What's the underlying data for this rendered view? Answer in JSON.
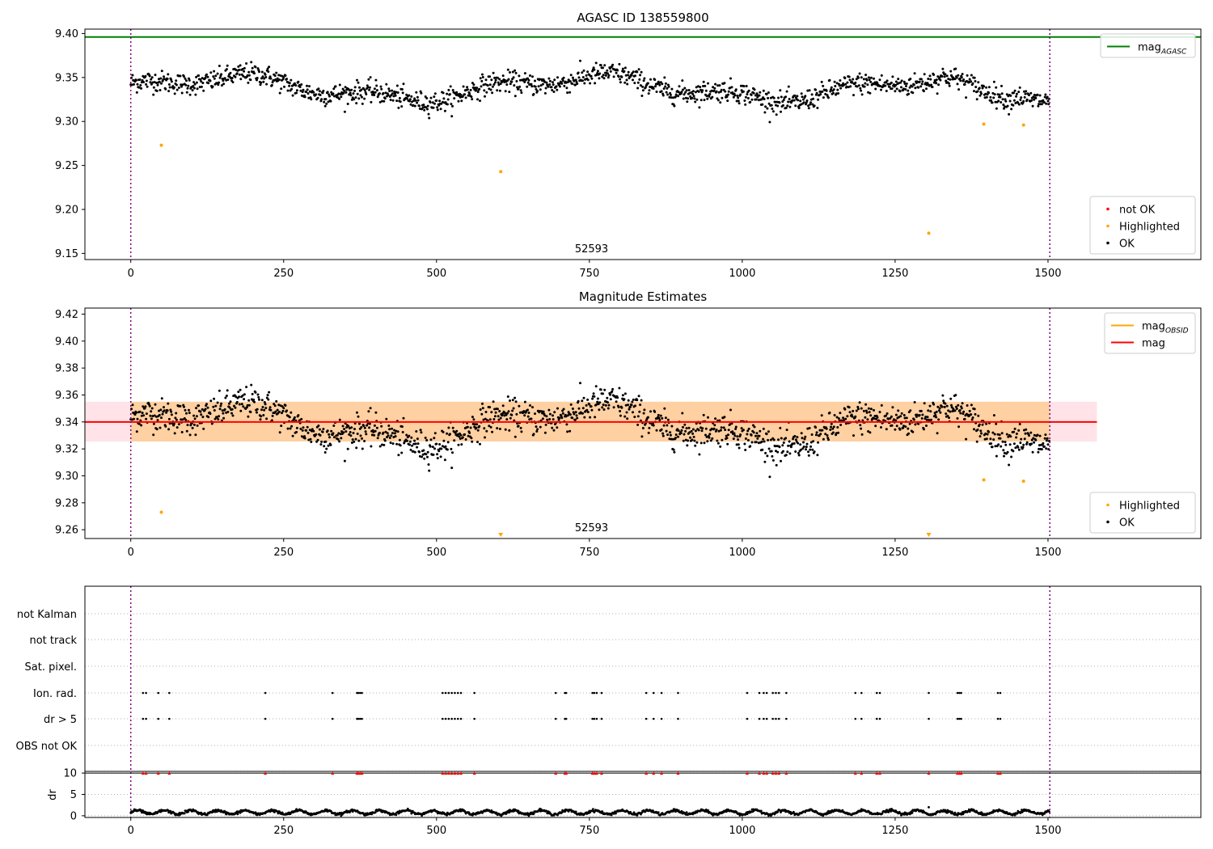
{
  "chart_data": [
    {
      "type": "scatter",
      "title": "AGASC ID 138559800",
      "xlim": [
        -75,
        1750
      ],
      "ylim": [
        9.143,
        9.405
      ],
      "xticks": [
        0,
        250,
        500,
        750,
        1000,
        1250,
        1500
      ],
      "yticks": [
        9.15,
        9.2,
        9.25,
        9.3,
        9.35,
        9.4
      ],
      "ytick_decimals": 2,
      "center_label": "52593",
      "vlines": [
        0,
        1503
      ],
      "legends": [
        {
          "position": "upper-right",
          "entries": [
            {
              "kind": "line",
              "color": "#008000",
              "label": "mag",
              "sub": "AGASC"
            }
          ]
        },
        {
          "position": "lower-right",
          "entries": [
            {
              "kind": "marker",
              "color": "#ff0000",
              "label": "not OK"
            },
            {
              "kind": "marker",
              "color": "#ffa500",
              "label": "Highlighted"
            },
            {
              "kind": "marker",
              "color": "#000000",
              "label": "OK"
            }
          ]
        }
      ],
      "hlines": [
        {
          "y": 9.396,
          "x0": -75,
          "x1": 1750,
          "color": "#008000",
          "width": 2
        }
      ],
      "ok_series": {
        "name": "OK",
        "color": "#000000",
        "n": 1503,
        "x_range": [
          0,
          1503
        ],
        "y_mean": 9.338,
        "y_scatter": 0.008
      },
      "highlighted": [
        {
          "x": 50,
          "y": 9.273
        },
        {
          "x": 605,
          "y": 9.243
        },
        {
          "x": 1305,
          "y": 9.173
        },
        {
          "x": 1395,
          "y": 9.297
        },
        {
          "x": 1460,
          "y": 9.296
        }
      ]
    },
    {
      "type": "scatter",
      "title": "Magnitude Estimates",
      "xlim": [
        -75,
        1750
      ],
      "ylim": [
        9.2535,
        9.4245
      ],
      "xticks": [
        0,
        250,
        500,
        750,
        1000,
        1250,
        1500
      ],
      "yticks": [
        9.26,
        9.28,
        9.3,
        9.32,
        9.34,
        9.36,
        9.38,
        9.4,
        9.42
      ],
      "ytick_decimals": 2,
      "center_label": "52593",
      "vlines": [
        0,
        1503
      ],
      "legends": [
        {
          "position": "upper-right",
          "entries": [
            {
              "kind": "line",
              "color": "#ffa500",
              "label": "mag",
              "sub": "OBSID"
            },
            {
              "kind": "line",
              "color": "#ff0000",
              "label": "mag"
            }
          ]
        },
        {
          "position": "lower-right",
          "entries": [
            {
              "kind": "marker",
              "color": "#ffa500",
              "label": "Highlighted"
            },
            {
              "kind": "marker",
              "color": "#000000",
              "label": "OK"
            }
          ]
        }
      ],
      "bands": [
        {
          "x0": -75,
          "x1": 1580,
          "y0": 9.3255,
          "y1": 9.355,
          "color": "#ffc0cb",
          "opacity": 0.45
        },
        {
          "x0": 0,
          "x1": 1503,
          "y0": 9.3255,
          "y1": 9.355,
          "color": "#ffa500",
          "opacity": 0.3
        }
      ],
      "hlines": [
        {
          "y": 9.34,
          "x0": -75,
          "x1": 1580,
          "color": "#ff0000",
          "width": 2
        }
      ],
      "ok_series": {
        "name": "OK",
        "color": "#000000",
        "n": 1503,
        "x_range": [
          0,
          1503
        ],
        "y_mean": 9.338,
        "y_scatter": 0.008
      },
      "highlighted": [
        {
          "x": 50,
          "y": 9.273
        },
        {
          "x": 1395,
          "y": 9.297
        },
        {
          "x": 1460,
          "y": 9.296
        }
      ],
      "out_of_range_markers": [
        {
          "x": 605,
          "color": "#ffa500"
        },
        {
          "x": 1305,
          "color": "#ffa500"
        }
      ]
    },
    {
      "type": "scatter",
      "title": "",
      "xlim": [
        -75,
        1750
      ],
      "xticks": [
        0,
        250,
        500,
        750,
        1000,
        1250,
        1500
      ],
      "vlines": [
        0,
        1503
      ],
      "flag_rows": [
        "not Kalman",
        "not track",
        "Sat. pixel.",
        "Ion. rad.",
        "dr > 5",
        "OBS not OK"
      ],
      "flag_events": {
        "Ion. rad.": [
          20,
          25,
          45,
          63,
          220,
          330,
          370,
          372,
          375,
          378,
          510,
          515,
          520,
          525,
          530,
          535,
          540,
          562,
          695,
          710,
          712,
          755,
          758,
          762,
          770,
          843,
          855,
          868,
          895,
          1008,
          1028,
          1035,
          1040,
          1050,
          1055,
          1060,
          1072,
          1185,
          1195,
          1220,
          1225,
          1305,
          1352,
          1355,
          1358,
          1418,
          1422
        ],
        "dr > 5": [
          20,
          25,
          45,
          63,
          220,
          330,
          370,
          372,
          375,
          378,
          510,
          515,
          520,
          525,
          530,
          535,
          540,
          562,
          695,
          710,
          712,
          755,
          758,
          762,
          770,
          843,
          855,
          868,
          895,
          1008,
          1028,
          1035,
          1040,
          1050,
          1055,
          1060,
          1072,
          1185,
          1195,
          1220,
          1225,
          1305,
          1352,
          1355,
          1358,
          1418,
          1422
        ]
      },
      "dr_panel": {
        "ylabel": "dr",
        "ylim": [
          -0.4,
          10.4
        ],
        "yticks": [
          0,
          5,
          10
        ],
        "hline": 10,
        "red_marker_color": "#ff0000",
        "red_at_x_same_as_flags": true
      }
    }
  ]
}
